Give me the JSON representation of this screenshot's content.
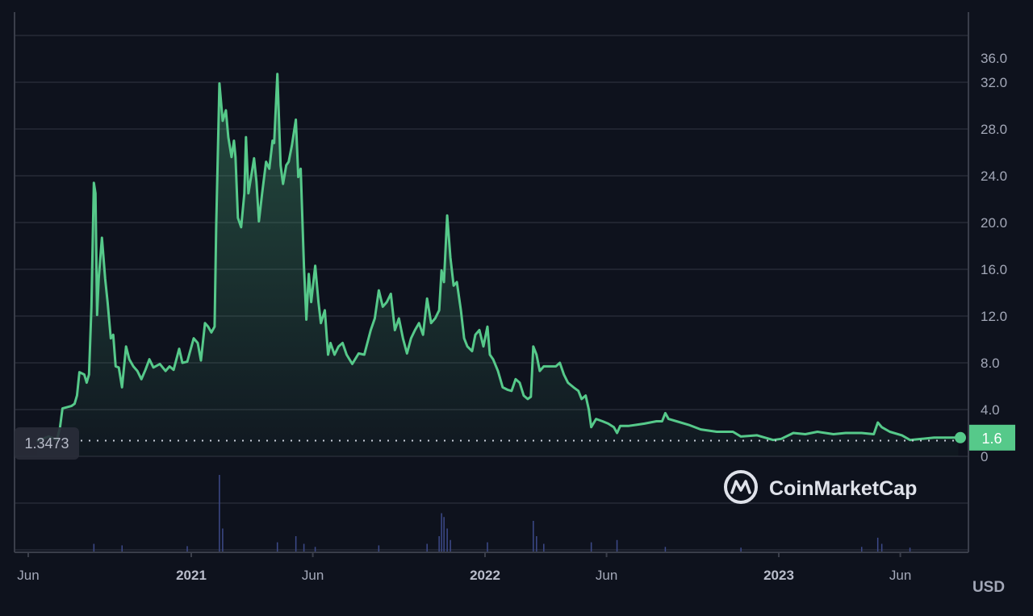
{
  "watermark": "CoinMarketCap",
  "currency": "USD",
  "chart_data": {
    "type": "area",
    "ylim": [
      0,
      36
    ],
    "yticks": [
      "0",
      "4.0",
      "8.0",
      "12.0",
      "16.0",
      "20.0",
      "24.0",
      "28.0",
      "32.0",
      "36.0"
    ],
    "ytick_values": [
      0,
      4,
      8,
      12,
      16,
      20,
      24,
      28,
      32,
      36
    ],
    "xticks": [
      {
        "date": "2020-06-01",
        "label": "Jun",
        "year": false
      },
      {
        "date": "2021-01-01",
        "label": "2021",
        "year": true
      },
      {
        "date": "2021-06-01",
        "label": "Jun",
        "year": false
      },
      {
        "date": "2022-01-01",
        "label": "2022",
        "year": true
      },
      {
        "date": "2022-06-01",
        "label": "Jun",
        "year": false
      },
      {
        "date": "2023-01-01",
        "label": "2023",
        "year": true
      },
      {
        "date": "2023-06-01",
        "label": "Jun",
        "year": false
      }
    ],
    "grid": true,
    "line_color": "#56c98a",
    "first_price_label": "1.3473",
    "last_price_label": "1.6",
    "first_price": 1.3473,
    "last_price": 1.6,
    "series": [
      {
        "values": [
          [
            "2020-06-23",
            1.3
          ],
          [
            "2020-07-08",
            1.7
          ],
          [
            "2020-07-18",
            1.4
          ],
          [
            "2020-07-22",
            2.5
          ],
          [
            "2020-07-25",
            4.1
          ],
          [
            "2020-08-05",
            4.3
          ],
          [
            "2020-08-09",
            4.5
          ],
          [
            "2020-08-12",
            5.2
          ],
          [
            "2020-08-15",
            7.2
          ],
          [
            "2020-08-21",
            7.0
          ],
          [
            "2020-08-24",
            6.3
          ],
          [
            "2020-08-27",
            7.0
          ],
          [
            "2020-08-30",
            12.8
          ],
          [
            "2020-09-02",
            23.4
          ],
          [
            "2020-09-04",
            22.5
          ],
          [
            "2020-09-06",
            12.1
          ],
          [
            "2020-09-08",
            15.2
          ],
          [
            "2020-09-12",
            18.7
          ],
          [
            "2020-09-16",
            15.2
          ],
          [
            "2020-09-19",
            13.2
          ],
          [
            "2020-09-23",
            10.1
          ],
          [
            "2020-09-26",
            10.4
          ],
          [
            "2020-09-29",
            7.7
          ],
          [
            "2020-10-03",
            7.6
          ],
          [
            "2020-10-07",
            5.9
          ],
          [
            "2020-10-12",
            9.4
          ],
          [
            "2020-10-16",
            8.3
          ],
          [
            "2020-10-21",
            7.7
          ],
          [
            "2020-10-26",
            7.3
          ],
          [
            "2020-10-31",
            6.6
          ],
          [
            "2020-11-05",
            7.4
          ],
          [
            "2020-11-10",
            8.3
          ],
          [
            "2020-11-15",
            7.6
          ],
          [
            "2020-11-23",
            7.9
          ],
          [
            "2020-11-30",
            7.3
          ],
          [
            "2020-12-05",
            7.7
          ],
          [
            "2020-12-10",
            7.4
          ],
          [
            "2020-12-17",
            9.2
          ],
          [
            "2020-12-21",
            8.0
          ],
          [
            "2020-12-27",
            8.1
          ],
          [
            "2021-01-04",
            10.1
          ],
          [
            "2021-01-09",
            9.7
          ],
          [
            "2021-01-13",
            8.2
          ],
          [
            "2021-01-18",
            11.4
          ],
          [
            "2021-01-22",
            11.1
          ],
          [
            "2021-01-26",
            10.6
          ],
          [
            "2021-01-30",
            11.1
          ],
          [
            "2021-02-01",
            19.7
          ],
          [
            "2021-02-05",
            31.9
          ],
          [
            "2021-02-09",
            28.7
          ],
          [
            "2021-02-13",
            29.6
          ],
          [
            "2021-02-16",
            27.3
          ],
          [
            "2021-02-20",
            25.6
          ],
          [
            "2021-02-23",
            27.0
          ],
          [
            "2021-02-25",
            25.6
          ],
          [
            "2021-02-28",
            20.4
          ],
          [
            "2021-03-04",
            19.6
          ],
          [
            "2021-03-08",
            22.5
          ],
          [
            "2021-03-10",
            27.3
          ],
          [
            "2021-03-13",
            22.5
          ],
          [
            "2021-03-17",
            24.2
          ],
          [
            "2021-03-20",
            25.5
          ],
          [
            "2021-03-23",
            23.5
          ],
          [
            "2021-03-26",
            20.1
          ],
          [
            "2021-03-30",
            22.5
          ],
          [
            "2021-04-04",
            25.2
          ],
          [
            "2021-04-08",
            24.6
          ],
          [
            "2021-04-12",
            27.0
          ],
          [
            "2021-04-14",
            26.8
          ],
          [
            "2021-04-18",
            32.7
          ],
          [
            "2021-04-22",
            24.9
          ],
          [
            "2021-04-25",
            23.3
          ],
          [
            "2021-04-29",
            24.9
          ],
          [
            "2021-05-02",
            25.2
          ],
          [
            "2021-05-06",
            26.6
          ],
          [
            "2021-05-11",
            28.8
          ],
          [
            "2021-05-14",
            23.9
          ],
          [
            "2021-05-17",
            24.6
          ],
          [
            "2021-05-21",
            16.3
          ],
          [
            "2021-05-24",
            11.7
          ],
          [
            "2021-05-27",
            15.6
          ],
          [
            "2021-05-30",
            13.2
          ],
          [
            "2021-06-04",
            16.3
          ],
          [
            "2021-06-08",
            13.2
          ],
          [
            "2021-06-11",
            11.4
          ],
          [
            "2021-06-16",
            12.5
          ],
          [
            "2021-06-20",
            8.7
          ],
          [
            "2021-06-23",
            9.7
          ],
          [
            "2021-06-28",
            8.7
          ],
          [
            "2021-07-03",
            9.4
          ],
          [
            "2021-07-08",
            9.7
          ],
          [
            "2021-07-13",
            8.7
          ],
          [
            "2021-07-20",
            7.9
          ],
          [
            "2021-07-28",
            8.8
          ],
          [
            "2021-08-04",
            8.7
          ],
          [
            "2021-08-12",
            10.8
          ],
          [
            "2021-08-17",
            11.8
          ],
          [
            "2021-08-22",
            14.2
          ],
          [
            "2021-08-27",
            12.8
          ],
          [
            "2021-09-01",
            13.2
          ],
          [
            "2021-09-06",
            13.9
          ],
          [
            "2021-09-11",
            10.8
          ],
          [
            "2021-09-16",
            11.8
          ],
          [
            "2021-09-21",
            10.1
          ],
          [
            "2021-09-26",
            8.8
          ],
          [
            "2021-10-01",
            10.1
          ],
          [
            "2021-10-06",
            10.8
          ],
          [
            "2021-10-11",
            11.4
          ],
          [
            "2021-10-16",
            10.4
          ],
          [
            "2021-10-21",
            13.5
          ],
          [
            "2021-10-26",
            11.4
          ],
          [
            "2021-10-31",
            11.8
          ],
          [
            "2021-11-05",
            12.5
          ],
          [
            "2021-11-08",
            15.9
          ],
          [
            "2021-11-11",
            14.9
          ],
          [
            "2021-11-15",
            20.6
          ],
          [
            "2021-11-19",
            17.0
          ],
          [
            "2021-11-23",
            14.6
          ],
          [
            "2021-11-27",
            14.9
          ],
          [
            "2021-12-02",
            12.5
          ],
          [
            "2021-12-06",
            10.1
          ],
          [
            "2021-12-10",
            9.4
          ],
          [
            "2021-12-16",
            9.0
          ],
          [
            "2021-12-20",
            10.4
          ],
          [
            "2021-12-25",
            10.8
          ],
          [
            "2021-12-30",
            9.4
          ],
          [
            "2022-01-04",
            11.1
          ],
          [
            "2022-01-07",
            8.7
          ],
          [
            "2022-01-11",
            8.3
          ],
          [
            "2022-01-17",
            7.3
          ],
          [
            "2022-01-23",
            5.9
          ],
          [
            "2022-01-29",
            5.7
          ],
          [
            "2022-02-03",
            5.6
          ],
          [
            "2022-02-08",
            6.6
          ],
          [
            "2022-02-13",
            6.3
          ],
          [
            "2022-02-18",
            5.2
          ],
          [
            "2022-02-23",
            4.9
          ],
          [
            "2022-02-27",
            5.1
          ],
          [
            "2022-03-02",
            9.4
          ],
          [
            "2022-03-06",
            8.7
          ],
          [
            "2022-03-10",
            7.3
          ],
          [
            "2022-03-15",
            7.7
          ],
          [
            "2022-03-22",
            7.7
          ],
          [
            "2022-03-30",
            7.7
          ],
          [
            "2022-04-04",
            8.0
          ],
          [
            "2022-04-09",
            7.0
          ],
          [
            "2022-04-14",
            6.3
          ],
          [
            "2022-04-21",
            5.9
          ],
          [
            "2022-04-27",
            5.6
          ],
          [
            "2022-05-01",
            4.9
          ],
          [
            "2022-05-06",
            5.2
          ],
          [
            "2022-05-10",
            4.0
          ],
          [
            "2022-05-13",
            2.5
          ],
          [
            "2022-05-19",
            3.2
          ],
          [
            "2022-05-27",
            3.0
          ],
          [
            "2022-06-03",
            2.8
          ],
          [
            "2022-06-10",
            2.5
          ],
          [
            "2022-06-14",
            2.0
          ],
          [
            "2022-06-18",
            2.6
          ],
          [
            "2022-06-28",
            2.6
          ],
          [
            "2022-07-08",
            2.7
          ],
          [
            "2022-07-18",
            2.8
          ],
          [
            "2022-08-02",
            3.0
          ],
          [
            "2022-08-09",
            3.0
          ],
          [
            "2022-08-13",
            3.7
          ],
          [
            "2022-08-17",
            3.2
          ],
          [
            "2022-08-27",
            3.0
          ],
          [
            "2022-09-11",
            2.7
          ],
          [
            "2022-09-26",
            2.3
          ],
          [
            "2022-10-16",
            2.1
          ],
          [
            "2022-11-05",
            2.1
          ],
          [
            "2022-11-15",
            1.7
          ],
          [
            "2022-12-05",
            1.8
          ],
          [
            "2022-12-25",
            1.4
          ],
          [
            "2023-01-04",
            1.5
          ],
          [
            "2023-01-19",
            2.0
          ],
          [
            "2023-02-03",
            1.9
          ],
          [
            "2023-02-18",
            2.1
          ],
          [
            "2023-02-28",
            2.0
          ],
          [
            "2023-03-10",
            1.9
          ],
          [
            "2023-03-25",
            2.0
          ],
          [
            "2023-04-14",
            2.0
          ],
          [
            "2023-04-29",
            1.9
          ],
          [
            "2023-05-04",
            2.9
          ],
          [
            "2023-05-09",
            2.5
          ],
          [
            "2023-05-19",
            2.1
          ],
          [
            "2023-06-03",
            1.8
          ],
          [
            "2023-06-13",
            1.4
          ],
          [
            "2023-06-28",
            1.5
          ],
          [
            "2023-07-13",
            1.6
          ],
          [
            "2023-07-28",
            1.6
          ],
          [
            "2023-08-12",
            1.6
          ]
        ]
      }
    ],
    "volume_relative": [
      [
        "2020-09-02",
        0.1
      ],
      [
        "2020-10-07",
        0.08
      ],
      [
        "2020-12-27",
        0.07
      ],
      [
        "2021-02-05",
        1.0
      ],
      [
        "2021-02-09",
        0.3
      ],
      [
        "2021-04-18",
        0.12
      ],
      [
        "2021-05-11",
        0.2
      ],
      [
        "2021-05-21",
        0.1
      ],
      [
        "2021-06-04",
        0.06
      ],
      [
        "2021-08-22",
        0.08
      ],
      [
        "2021-10-21",
        0.1
      ],
      [
        "2021-11-05",
        0.2
      ],
      [
        "2021-11-08",
        0.5
      ],
      [
        "2021-11-11",
        0.45
      ],
      [
        "2021-11-15",
        0.3
      ],
      [
        "2021-11-19",
        0.15
      ],
      [
        "2022-01-04",
        0.12
      ],
      [
        "2022-03-02",
        0.4
      ],
      [
        "2022-03-06",
        0.2
      ],
      [
        "2022-03-15",
        0.1
      ],
      [
        "2022-05-13",
        0.12
      ],
      [
        "2022-06-14",
        0.15
      ],
      [
        "2022-08-13",
        0.06
      ],
      [
        "2022-11-15",
        0.05
      ],
      [
        "2023-04-14",
        0.06
      ],
      [
        "2023-05-04",
        0.18
      ],
      [
        "2023-05-09",
        0.1
      ],
      [
        "2023-06-13",
        0.05
      ]
    ]
  }
}
